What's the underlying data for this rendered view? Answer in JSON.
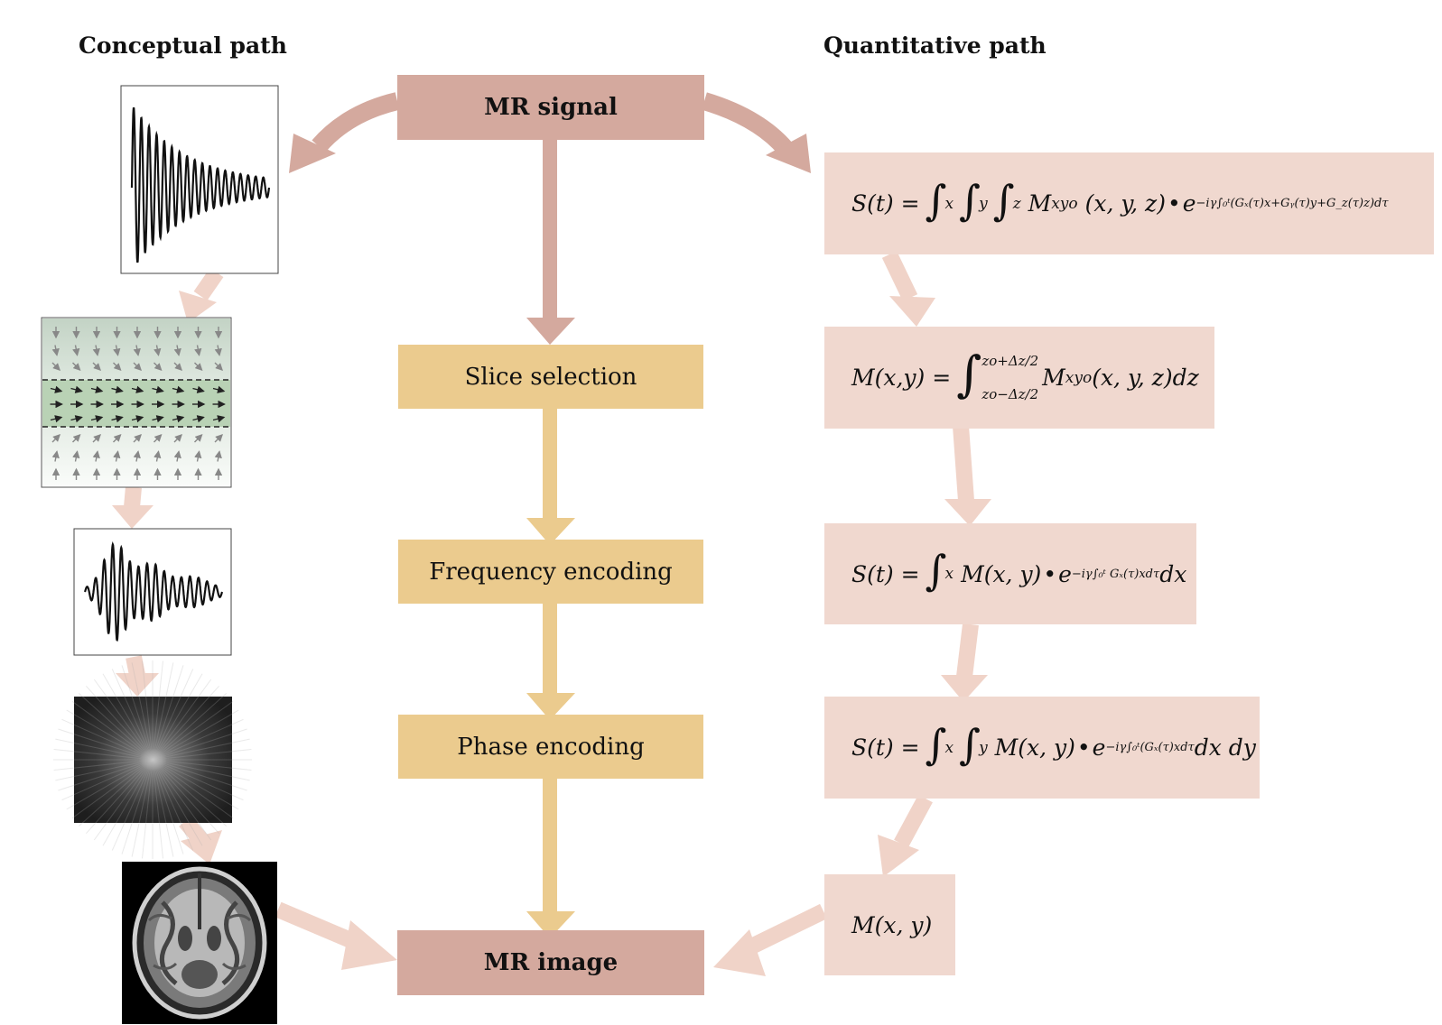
{
  "headings": {
    "conceptual": "Conceptual path",
    "quantitative": "Quantitative path"
  },
  "steps": {
    "mr_signal": "MR signal",
    "slice_selection": "Slice selection",
    "frequency_encoding": "Frequency encoding",
    "phase_encoding": "Phase encoding",
    "mr_image": "MR image"
  },
  "equations": {
    "eq1": {
      "lhs": "S(t) =",
      "sub_x": "x",
      "sub_y": "y",
      "sub_z": "z",
      "body": "M",
      "body_sub": "xyo",
      "args": "(x, y, z)",
      "exp_base": "e",
      "exponent": "−iγ∫₀ᵗ(Gₓ(τ)x+Gᵧ(τ)y+G_z(τ)z)dτ"
    },
    "eq2": {
      "lhs": "M(x,y) =",
      "upper": "zo+Δz/2",
      "lower": "zo−Δz/2",
      "body": "M",
      "body_sub": "xyo",
      "args": "(x, y, z)dz"
    },
    "eq3": {
      "lhs": "S(t) =",
      "sub_x": "x",
      "body": "M(x, y)",
      "exp_base": "e",
      "exponent": "−iγ∫₀ᵗ Gₓ(τ)xdτ",
      "tail": "dx"
    },
    "eq4": {
      "lhs": "S(t) =",
      "sub_x": "x",
      "sub_y": "y",
      "body": "M(x, y)",
      "exp_base": "e",
      "exponent": "−iγ∫₀ᵗ(Gₓ(τ)xdτ",
      "tail": "dx dy"
    },
    "eq5": {
      "text": "M(x, y)"
    }
  },
  "icons": [
    "fid-signal-icon",
    "spin-slice-icon",
    "echo-signal-icon",
    "k-space-icon",
    "brain-mri-icon"
  ],
  "colors": {
    "terminal_box": "#d4a99e",
    "process_box": "#ebcb8e",
    "equation_box": "#f0d8cf",
    "arrow_terminal": "#d4a99e",
    "arrow_process": "#ebcb8e",
    "arrow_light": "#f0d3c8"
  }
}
